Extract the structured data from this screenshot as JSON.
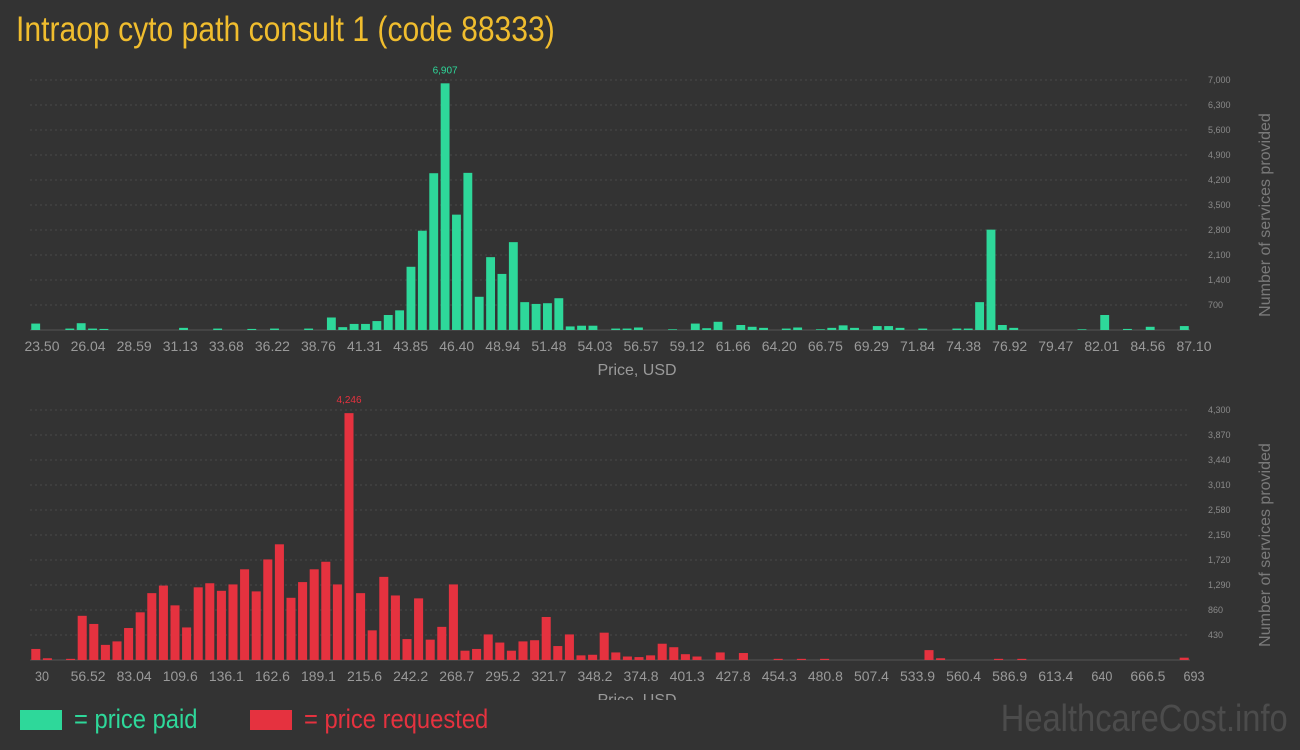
{
  "title": "Intraop cyto path consult 1 (code 88333)",
  "legend": {
    "paid": "= price paid",
    "requested": "= price requested"
  },
  "watermark": "HealthcareCost.info",
  "colors": {
    "paid": "#2ed89a",
    "requested": "#e5323f",
    "title": "#f0bd2e",
    "background": "#333333"
  },
  "chart_data": [
    {
      "type": "bar",
      "name": "paid",
      "xlabel": "Price, USD",
      "ylabel": "Number of services provided",
      "grid": true,
      "ylim": [
        0,
        7000
      ],
      "y_ticks": [
        "700",
        "1,400",
        "2,100",
        "2,800",
        "3,500",
        "4,200",
        "4,900",
        "5,600",
        "6,300",
        "7,000"
      ],
      "x_ticks": [
        "23.50",
        "26.04",
        "28.59",
        "31.13",
        "33.68",
        "36.22",
        "38.76",
        "41.31",
        "43.85",
        "46.40",
        "48.94",
        "51.48",
        "54.03",
        "56.57",
        "59.12",
        "61.66",
        "64.20",
        "66.75",
        "69.29",
        "71.84",
        "74.38",
        "76.92",
        "79.47",
        "82.01",
        "84.56",
        "87.10"
      ],
      "peak_label": "6,907",
      "values": [
        180,
        0,
        0,
        40,
        190,
        40,
        30,
        0,
        0,
        0,
        0,
        0,
        0,
        60,
        0,
        0,
        40,
        0,
        0,
        30,
        0,
        40,
        0,
        0,
        40,
        0,
        350,
        80,
        170,
        170,
        250,
        420,
        550,
        1770,
        2780,
        4390,
        6907,
        3230,
        4400,
        930,
        2040,
        1570,
        2460,
        780,
        730,
        750,
        890,
        100,
        120,
        120,
        0,
        40,
        40,
        70,
        0,
        0,
        20,
        0,
        180,
        50,
        230,
        0,
        140,
        90,
        60,
        0,
        40,
        70,
        0,
        20,
        60,
        130,
        60,
        0,
        110,
        110,
        60,
        0,
        40,
        0,
        0,
        40,
        40,
        780,
        2810,
        140,
        60,
        0,
        0,
        0,
        0,
        0,
        20,
        0,
        420,
        0,
        30,
        0,
        90,
        0,
        0,
        110
      ]
    },
    {
      "type": "bar",
      "name": "requested",
      "xlabel": "Price, USD",
      "ylabel": "Number of services provided",
      "grid": true,
      "ylim": [
        0,
        4300
      ],
      "y_ticks": [
        "430",
        "860",
        "1,290",
        "1,720",
        "2,150",
        "2,580",
        "3,010",
        "3,440",
        "3,870",
        "4,300"
      ],
      "x_ticks": [
        "30",
        "56.52",
        "83.04",
        "109.6",
        "136.1",
        "162.6",
        "189.1",
        "215.6",
        "242.2",
        "268.7",
        "295.2",
        "321.7",
        "348.2",
        "374.8",
        "401.3",
        "427.8",
        "454.3",
        "480.8",
        "507.4",
        "533.9",
        "560.4",
        "586.9",
        "613.4",
        "640",
        "666.5",
        "693"
      ],
      "peak_label": "4,246",
      "values": [
        190,
        30,
        0,
        20,
        760,
        620,
        260,
        320,
        550,
        820,
        1150,
        1280,
        940,
        560,
        1250,
        1320,
        1190,
        1300,
        1560,
        1180,
        1730,
        1990,
        1070,
        1340,
        1560,
        1690,
        1300,
        4246,
        1150,
        510,
        1430,
        1110,
        360,
        1060,
        350,
        570,
        1300,
        160,
        190,
        440,
        300,
        160,
        320,
        340,
        740,
        240,
        440,
        80,
        90,
        470,
        130,
        60,
        50,
        80,
        280,
        220,
        100,
        60,
        0,
        130,
        0,
        120,
        0,
        0,
        20,
        0,
        20,
        0,
        20,
        0,
        0,
        0,
        0,
        0,
        0,
        0,
        0,
        170,
        30,
        0,
        0,
        0,
        0,
        20,
        0,
        20,
        0,
        0,
        0,
        0,
        0,
        0,
        0,
        0,
        0,
        0,
        0,
        0,
        0,
        40
      ]
    }
  ]
}
